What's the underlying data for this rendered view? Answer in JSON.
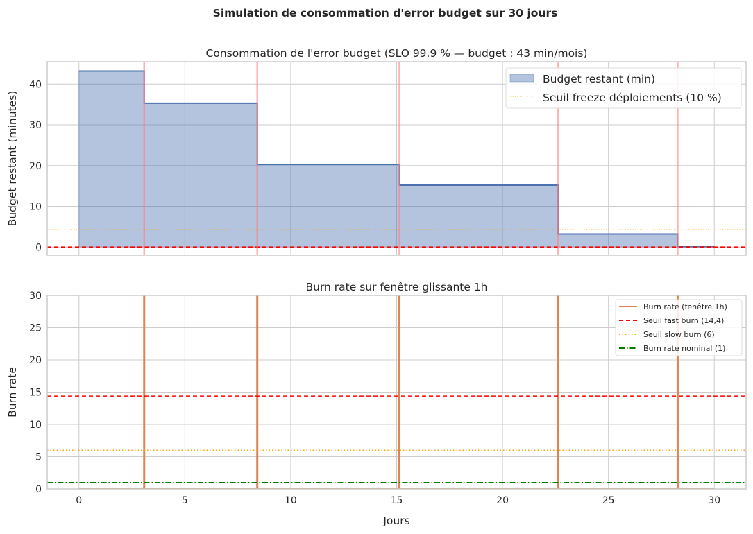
{
  "suptitle": "Simulation de consommation d'error budget sur 30 jours",
  "chart_data": [
    {
      "type": "area",
      "title": "Consommation de l'error budget (SLO 99.9 % — budget : 43 min/mois)",
      "xlabel": "",
      "ylabel": "Budget restant (minutes)",
      "xlim": [
        -1.5,
        31.5
      ],
      "ylim": [
        -2,
        45.5
      ],
      "xticks": [
        0,
        5,
        10,
        15,
        20,
        25,
        30
      ],
      "yticks": [
        0,
        10,
        20,
        30,
        40
      ],
      "grid": true,
      "legend_position": "upper-right",
      "series": [
        {
          "name": "Budget restant (min)",
          "kind": "step-fill",
          "color": "#4c72b0",
          "x": [
            0,
            3.08,
            3.08,
            8.42,
            8.42,
            15.13,
            15.13,
            22.63,
            22.63,
            28.27,
            28.27,
            30
          ],
          "y": [
            43.2,
            43.2,
            35.3,
            35.3,
            20.3,
            20.3,
            15.2,
            15.2,
            3.2,
            3.2,
            0.1,
            0.1
          ]
        },
        {
          "name": "Seuil freeze déploiements (10 %)",
          "kind": "hline",
          "y": 4.3,
          "color": "#ffa500",
          "style": "dotted"
        }
      ],
      "extra_lines": [
        {
          "kind": "hline",
          "y": 0,
          "color": "#ff0000",
          "style": "dashed"
        },
        {
          "kind": "vlines",
          "x": [
            3.08,
            8.42,
            15.13,
            22.63,
            28.27
          ],
          "color": "#ff7f7f"
        }
      ]
    },
    {
      "type": "line",
      "title": "Burn rate sur fenêtre glissante 1h",
      "xlabel": "Jours",
      "ylabel": "Burn rate",
      "xlim": [
        -1.5,
        31.5
      ],
      "ylim": [
        0,
        30
      ],
      "xticks": [
        0,
        5,
        10,
        15,
        20,
        25,
        30
      ],
      "yticks": [
        0,
        5,
        10,
        15,
        20,
        25,
        30
      ],
      "grid": true,
      "legend_position": "upper-right",
      "series": [
        {
          "name": "Burn rate (fenêtre 1h)",
          "kind": "spikes",
          "color": "#dd8452",
          "baseline": 0,
          "spike_x": [
            3.08,
            8.42,
            15.13,
            22.63,
            28.27
          ],
          "spike_y_visible_max": 30
        },
        {
          "name": "Seuil fast burn (14,4)",
          "kind": "hline",
          "y": 14.4,
          "color": "#ff0000",
          "style": "dashed"
        },
        {
          "name": "Seuil slow burn (6)",
          "kind": "hline",
          "y": 6,
          "color": "#ffa500",
          "style": "dotted"
        },
        {
          "name": "Burn rate nominal (1)",
          "kind": "hline",
          "y": 1,
          "color": "#008000",
          "style": "dashdot"
        }
      ]
    }
  ]
}
